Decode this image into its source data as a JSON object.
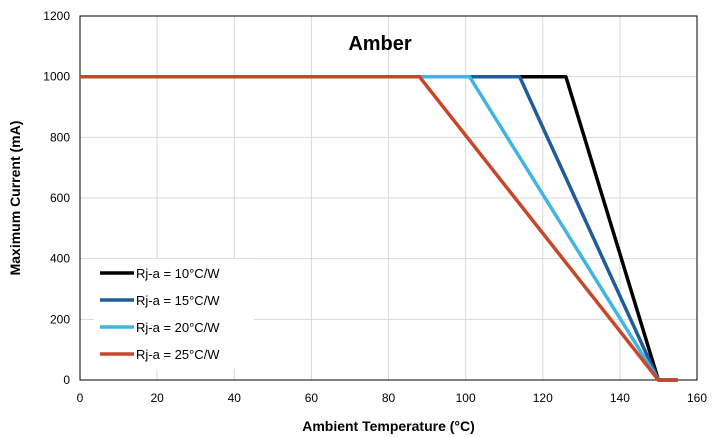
{
  "chart_data": {
    "type": "line",
    "title": "Amber",
    "xlabel": "Ambient Temperature (°C)",
    "ylabel": "Maximum Current (mA)",
    "xlim": [
      0,
      160
    ],
    "ylim": [
      0,
      1200
    ],
    "x_ticks": [
      0,
      20,
      40,
      60,
      80,
      100,
      120,
      140,
      160
    ],
    "y_ticks": [
      0,
      200,
      400,
      600,
      800,
      1000,
      1200
    ],
    "x_tick_labels": [
      "0",
      "20",
      "40",
      "60",
      "80",
      "100",
      "120",
      "140",
      "160"
    ],
    "y_tick_labels": [
      "0",
      "200",
      "400",
      "600",
      "800",
      "1000",
      "1200"
    ],
    "grid": true,
    "legend_position": "bottom-left",
    "series": [
      {
        "name": "Rj-a = 10°C/W",
        "color": "#000000",
        "x": [
          0,
          126,
          150,
          155
        ],
        "y": [
          1000,
          1000,
          0,
          0
        ]
      },
      {
        "name": "Rj-a = 15°C/W",
        "color": "#1f5c99",
        "x": [
          0,
          114,
          150,
          155
        ],
        "y": [
          1000,
          1000,
          0,
          0
        ]
      },
      {
        "name": "Rj-a = 20°C/W",
        "color": "#3fb4e5",
        "x": [
          0,
          101,
          150,
          155
        ],
        "y": [
          1000,
          1000,
          0,
          0
        ]
      },
      {
        "name": "Rj-a = 25°C/W",
        "color": "#c8472a",
        "x": [
          0,
          88,
          150,
          155
        ],
        "y": [
          1000,
          1000,
          0,
          0
        ]
      }
    ]
  }
}
